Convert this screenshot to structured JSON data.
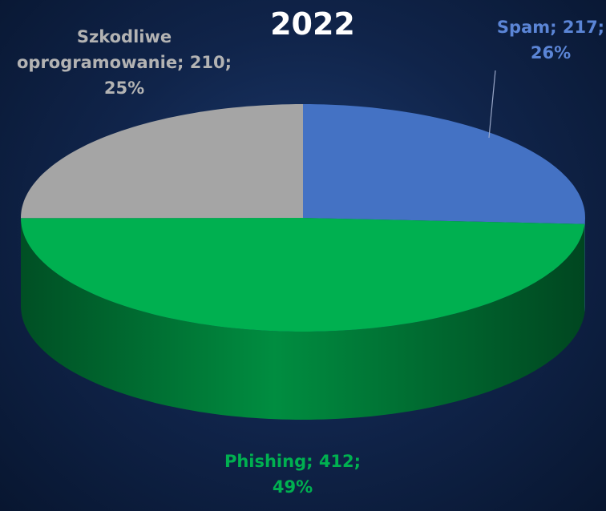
{
  "chart_data": {
    "type": "pie3d",
    "title": "2022",
    "values": [
      217,
      412,
      210
    ],
    "value_labels": [
      "Spam; 217; 26%",
      "Phishing; 412; 49%",
      "Szkodliwe oprogramowanie; 210; 25%"
    ],
    "colors": [
      "#4472c4",
      "#00b050",
      "#a5a5a5"
    ],
    "start_angle": 0,
    "direction": "clockwise"
  }
}
